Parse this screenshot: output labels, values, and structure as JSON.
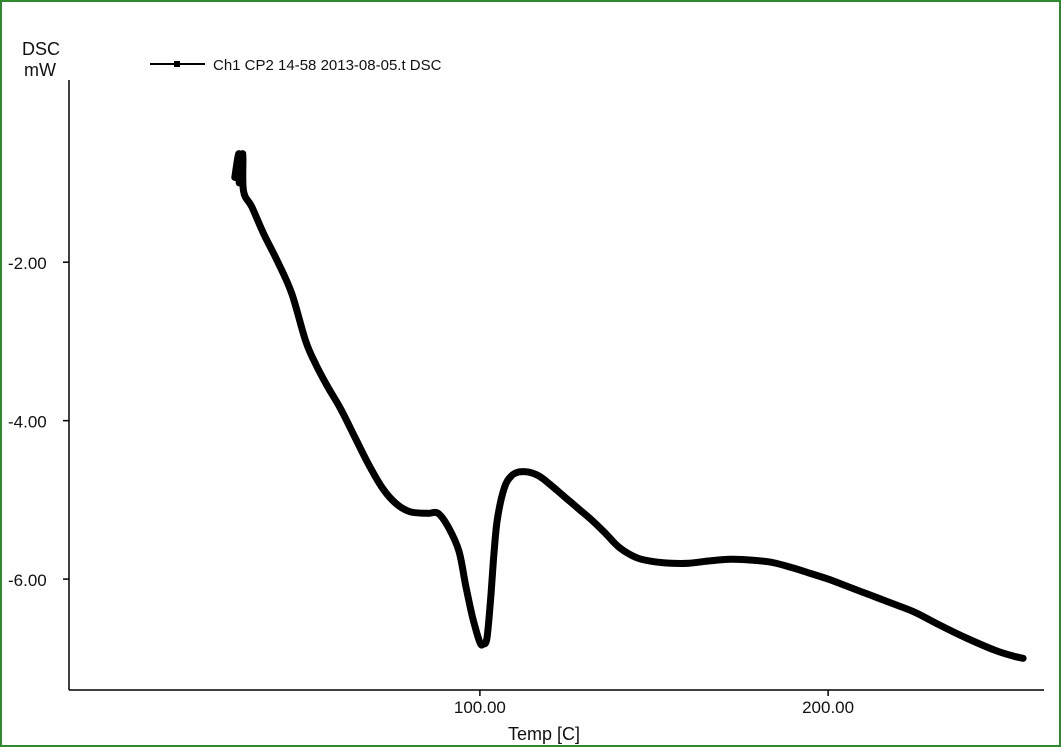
{
  "chart_data": {
    "type": "line",
    "ylabel_line1": "DSC",
    "ylabel_line2": "mW",
    "xlabel": "Temp  [C]",
    "legend": "Ch1 CP2 14-58 2013-08-05.t  DSC",
    "legend_placement": "top-left",
    "grid": false,
    "xlim": [
      -18,
      262
    ],
    "ylim": [
      -7.4,
      0.3
    ],
    "xticks": [
      100,
      200
    ],
    "xtick_labels": [
      "100.00",
      "200.00"
    ],
    "yticks": [
      -2,
      -4,
      -6
    ],
    "ytick_labels": [
      "-2.00",
      "-4.00",
      "-6.00"
    ],
    "series": [
      {
        "name": "Ch1 CP2 14-58 2013-08-05.t  DSC",
        "color": "#000000",
        "x": [
          29.6,
          30.8,
          30.9,
          31.9,
          32.1,
          34.5,
          38,
          42,
          46,
          50,
          53,
          56,
          60,
          64,
          68,
          72,
          76,
          80,
          85,
          88,
          91,
          94,
          96,
          98,
          100,
          101,
          102,
          103,
          104,
          105,
          107,
          109,
          111,
          114,
          117,
          120,
          124,
          128,
          132,
          136,
          140,
          145,
          150,
          155,
          160,
          166,
          172,
          178,
          184,
          190,
          195,
          200,
          206,
          212,
          218,
          225,
          232,
          240,
          248,
          253,
          256
        ],
        "y": [
          -0.93,
          -0.63,
          -1.0,
          -0.63,
          -1.1,
          -1.3,
          -1.65,
          -2.0,
          -2.4,
          -3.0,
          -3.3,
          -3.55,
          -3.85,
          -4.2,
          -4.55,
          -4.85,
          -5.05,
          -5.15,
          -5.17,
          -5.17,
          -5.35,
          -5.65,
          -6.1,
          -6.5,
          -6.8,
          -6.82,
          -6.75,
          -6.3,
          -5.7,
          -5.25,
          -4.85,
          -4.7,
          -4.65,
          -4.65,
          -4.7,
          -4.8,
          -4.95,
          -5.1,
          -5.25,
          -5.42,
          -5.6,
          -5.73,
          -5.78,
          -5.8,
          -5.8,
          -5.77,
          -5.75,
          -5.76,
          -5.79,
          -5.86,
          -5.93,
          -6.0,
          -6.1,
          -6.2,
          -6.3,
          -6.42,
          -6.58,
          -6.75,
          -6.9,
          -6.97,
          -7.0
        ]
      }
    ]
  }
}
